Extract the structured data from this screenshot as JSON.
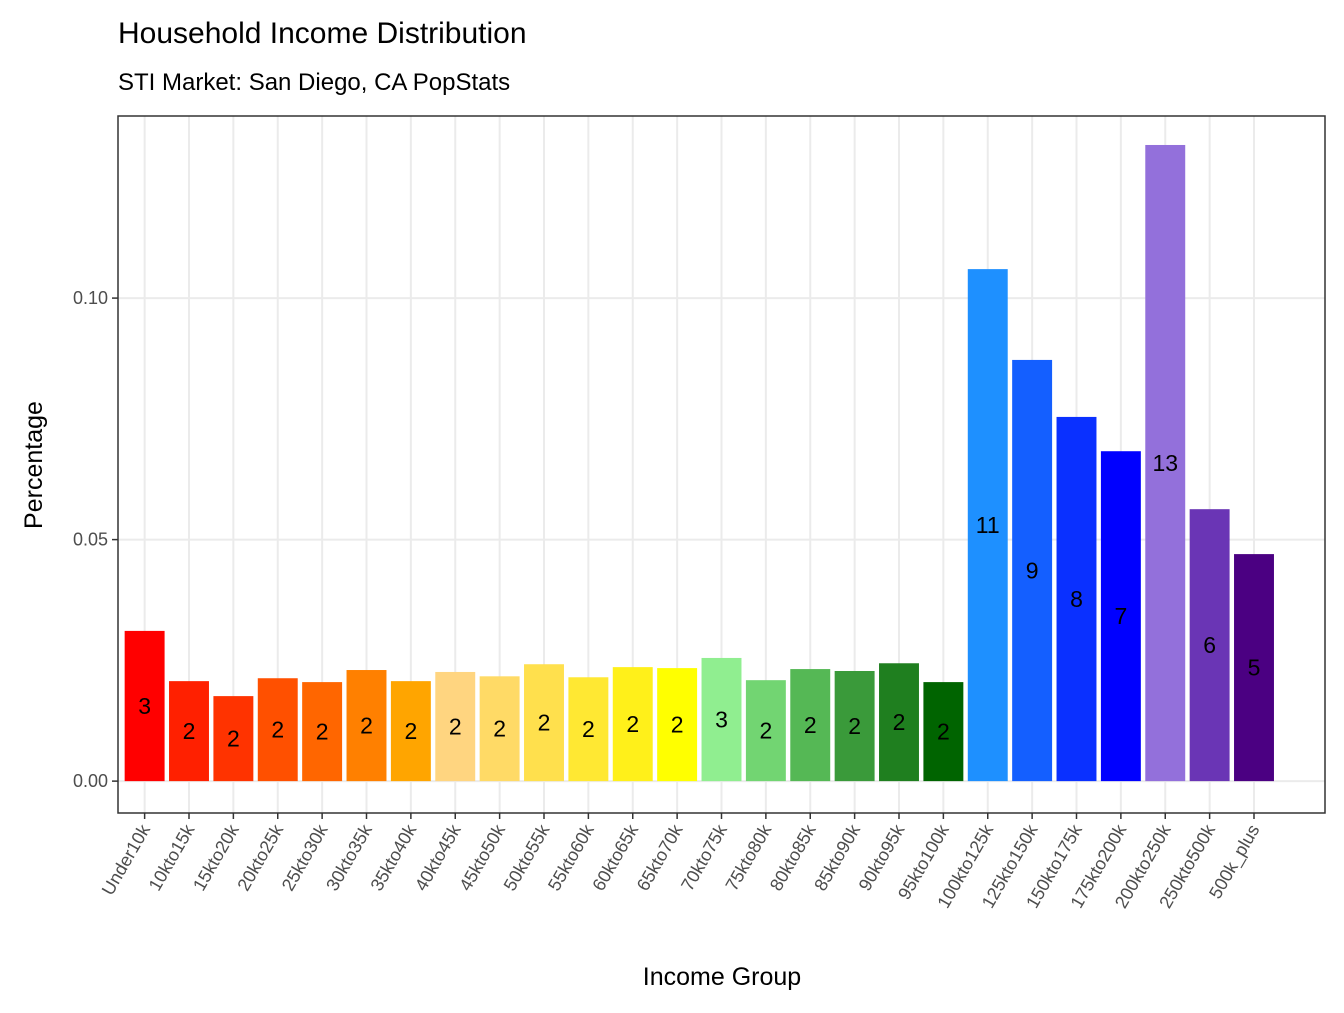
{
  "chart_data": {
    "type": "bar",
    "title": "Household Income Distribution",
    "subtitle": "STI Market: San Diego, CA PopStats",
    "x_label": "Income Group",
    "y_label": "Percentage",
    "categories": [
      "Under10k",
      "10kto15k",
      "15kto20k",
      "20kto25k",
      "25kto30k",
      "30kto35k",
      "35kto40k",
      "40kto45k",
      "45kto50k",
      "50kto55k",
      "55kto60k",
      "60kto65k",
      "65kto70k",
      "70kto75k",
      "75kto80k",
      "80kto85k",
      "85kto90k",
      "90kto95k",
      "95kto100k",
      "100kto125k",
      "125kto150k",
      "150kto175k",
      "175kto200k",
      "200kto250k",
      "250kto500k",
      "500k_plus"
    ],
    "values": [
      0.0311,
      0.0207,
      0.0176,
      0.0213,
      0.0205,
      0.023,
      0.0207,
      0.0226,
      0.0217,
      0.0242,
      0.0215,
      0.0236,
      0.0234,
      0.0255,
      0.0209,
      0.0232,
      0.0228,
      0.0244,
      0.0205,
      0.106,
      0.0872,
      0.0754,
      0.0683,
      0.1317,
      0.0563,
      0.047
    ],
    "value_labels": [
      "3",
      "2",
      "2",
      "2",
      "2",
      "2",
      "2",
      "2",
      "2",
      "2",
      "2",
      "2",
      "2",
      "3",
      "2",
      "2",
      "2",
      "2",
      "2",
      "11",
      "9",
      "8",
      "7",
      "13",
      "6",
      "5"
    ],
    "colors": [
      "#FF0000",
      "#FF2000",
      "#FF3300",
      "#FF5000",
      "#FF6600",
      "#FF8000",
      "#FFA500",
      "#FFD580",
      "#FFDA66",
      "#FFE04D",
      "#FFE833",
      "#FFF01A",
      "#FFFF00",
      "#90EE90",
      "#72D572",
      "#55B855",
      "#3A9A3A",
      "#1F7F1F",
      "#006400",
      "#1E90FF",
      "#145FFF",
      "#0A30FF",
      "#0000FF",
      "#9370DB",
      "#6A35B5",
      "#4B0082"
    ],
    "ylim": [
      -0.0066,
      0.1377
    ],
    "yticks": [
      {
        "value": 0,
        "label": "0.00"
      },
      {
        "value": 0.05,
        "label": "0.05"
      },
      {
        "value": 0.1,
        "label": "0.10"
      }
    ],
    "grid": true
  }
}
